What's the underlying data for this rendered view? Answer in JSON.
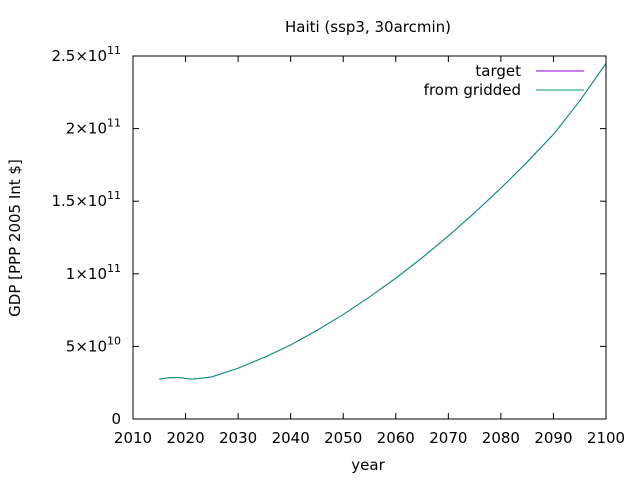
{
  "chart_data": {
    "type": "line",
    "title": "Haiti (ssp3, 30arcmin)",
    "xlabel": "year",
    "ylabel": "GDP [PPP 2005 Int $]",
    "xlim": [
      2010,
      2100
    ],
    "ylim": [
      0,
      250000000000
    ],
    "x_ticks": [
      {
        "value": 2010,
        "label": "2010"
      },
      {
        "value": 2020,
        "label": "2020"
      },
      {
        "value": 2030,
        "label": "2030"
      },
      {
        "value": 2040,
        "label": "2040"
      },
      {
        "value": 2050,
        "label": "2050"
      },
      {
        "value": 2060,
        "label": "2060"
      },
      {
        "value": 2070,
        "label": "2070"
      },
      {
        "value": 2080,
        "label": "2080"
      },
      {
        "value": 2090,
        "label": "2090"
      },
      {
        "value": 2100,
        "label": "2100"
      }
    ],
    "y_ticks": [
      {
        "value": 0,
        "mantissa": "0",
        "exponent": ""
      },
      {
        "value": 50000000000,
        "mantissa": "5×10",
        "exponent": "10"
      },
      {
        "value": 100000000000,
        "mantissa": "1×10",
        "exponent": "11"
      },
      {
        "value": 150000000000,
        "mantissa": "1.5×10",
        "exponent": "11"
      },
      {
        "value": 200000000000,
        "mantissa": "2×10",
        "exponent": "11"
      },
      {
        "value": 250000000000,
        "mantissa": "2.5×10",
        "exponent": "11"
      }
    ],
    "grid": false,
    "legend_position": "top-right",
    "x": [
      2015,
      2017,
      2019,
      2021,
      2023,
      2025,
      2030,
      2035,
      2040,
      2045,
      2050,
      2055,
      2060,
      2065,
      2070,
      2075,
      2080,
      2085,
      2090,
      2095,
      2100
    ],
    "series": [
      {
        "name": "target",
        "color": "#9400d3",
        "values": [
          27500000000,
          28500000000,
          28500000000,
          27500000000,
          28000000000,
          29000000000,
          35000000000,
          42500000000,
          51000000000,
          61000000000,
          72000000000,
          84000000000,
          97000000000,
          111000000000,
          126000000000,
          142000000000,
          159000000000,
          177000000000,
          196000000000,
          219000000000,
          245000000000
        ]
      },
      {
        "name": "from gridded",
        "color": "#009e73",
        "values": [
          27500000000,
          28500000000,
          28500000000,
          27500000000,
          28000000000,
          29000000000,
          35000000000,
          42500000000,
          51000000000,
          61000000000,
          72000000000,
          84000000000,
          97000000000,
          111000000000,
          126000000000,
          142000000000,
          159000000000,
          177000000000,
          196000000000,
          219000000000,
          245000000000
        ]
      }
    ]
  }
}
